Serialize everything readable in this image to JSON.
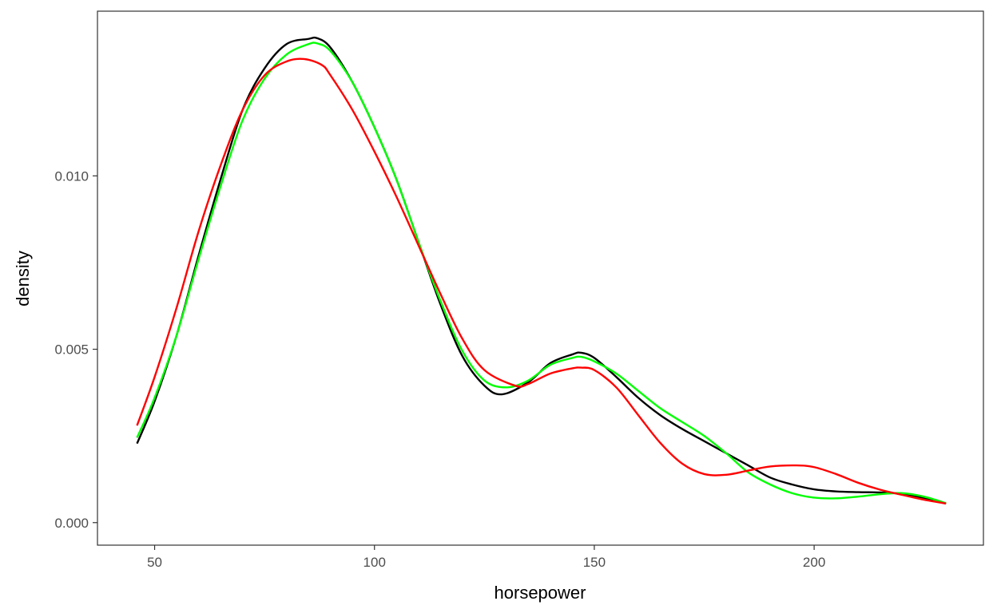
{
  "chart_data": {
    "type": "line",
    "xlabel": "horsepower",
    "ylabel": "density",
    "xlim": [
      37,
      238.5
    ],
    "ylim": [
      -0.00065,
      0.01475
    ],
    "x_ticks": [
      50,
      100,
      150,
      200
    ],
    "y_ticks": [
      0.0,
      0.005,
      0.01
    ],
    "x_tick_labels": [
      "50",
      "100",
      "150",
      "200"
    ],
    "y_tick_labels": [
      "0.000",
      "0.005",
      "0.010"
    ],
    "grid": false,
    "legend": "none",
    "series": [
      {
        "color": "#000000",
        "x": [
          46,
          50,
          55,
          60,
          65,
          70,
          75,
          80,
          85,
          87,
          90,
          95,
          100,
          105,
          110,
          115,
          120,
          125,
          129,
          135,
          140,
          145,
          147,
          150,
          155,
          160,
          165,
          170,
          175,
          180,
          185,
          190,
          195,
          200,
          205,
          210,
          215,
          220,
          225,
          230
        ],
        "y": [
          0.00228,
          0.0035,
          0.0054,
          0.0077,
          0.0099,
          0.0119,
          0.0131,
          0.0138,
          0.01395,
          0.01397,
          0.0137,
          0.0127,
          0.0114,
          0.0099,
          0.0081,
          0.0063,
          0.0048,
          0.00395,
          0.0037,
          0.00405,
          0.0046,
          0.00485,
          0.0049,
          0.00475,
          0.0042,
          0.0036,
          0.0031,
          0.0027,
          0.00235,
          0.002,
          0.00165,
          0.0013,
          0.0011,
          0.00096,
          0.0009,
          0.00088,
          0.00087,
          0.00083,
          0.0007,
          0.00055
        ]
      },
      {
        "color": "#00ff00",
        "x": [
          46,
          50,
          55,
          60,
          65,
          70,
          75,
          80,
          85,
          87,
          90,
          95,
          100,
          105,
          110,
          115,
          120,
          125,
          130,
          135,
          140,
          145,
          147,
          150,
          155,
          160,
          165,
          170,
          175,
          180,
          185,
          190,
          195,
          200,
          205,
          210,
          215,
          220,
          225,
          230
        ],
        "y": [
          0.00245,
          0.0036,
          0.0054,
          0.0076,
          0.0097,
          0.0116,
          0.0128,
          0.0135,
          0.0138,
          0.01382,
          0.0136,
          0.0127,
          0.0114,
          0.0099,
          0.0081,
          0.0064,
          0.00495,
          0.0041,
          0.0039,
          0.0041,
          0.00455,
          0.00475,
          0.00478,
          0.00465,
          0.0043,
          0.0038,
          0.0033,
          0.0029,
          0.0025,
          0.002,
          0.00145,
          0.0011,
          0.00085,
          0.00072,
          0.0007,
          0.00075,
          0.00082,
          0.00085,
          0.00075,
          0.00056
        ]
      },
      {
        "color": "#ff0000",
        "x": [
          46,
          50,
          55,
          60,
          65,
          70,
          75,
          80,
          84,
          88,
          90,
          95,
          100,
          105,
          110,
          115,
          120,
          125,
          132,
          135,
          140,
          145,
          147,
          150,
          155,
          160,
          165,
          170,
          175,
          180,
          185,
          190,
          196,
          200,
          205,
          210,
          215,
          220,
          225,
          230
        ],
        "y": [
          0.0028,
          0.0042,
          0.0062,
          0.0084,
          0.0103,
          0.0119,
          0.0129,
          0.0133,
          0.01337,
          0.0132,
          0.0129,
          0.0119,
          0.0107,
          0.0094,
          0.008,
          0.0066,
          0.0053,
          0.0044,
          0.00395,
          0.004,
          0.0043,
          0.00445,
          0.00447,
          0.0044,
          0.0039,
          0.0031,
          0.0023,
          0.0017,
          0.0014,
          0.00138,
          0.0015,
          0.00162,
          0.00165,
          0.0016,
          0.0014,
          0.00115,
          0.00095,
          0.0008,
          0.00066,
          0.00055
        ]
      }
    ]
  }
}
